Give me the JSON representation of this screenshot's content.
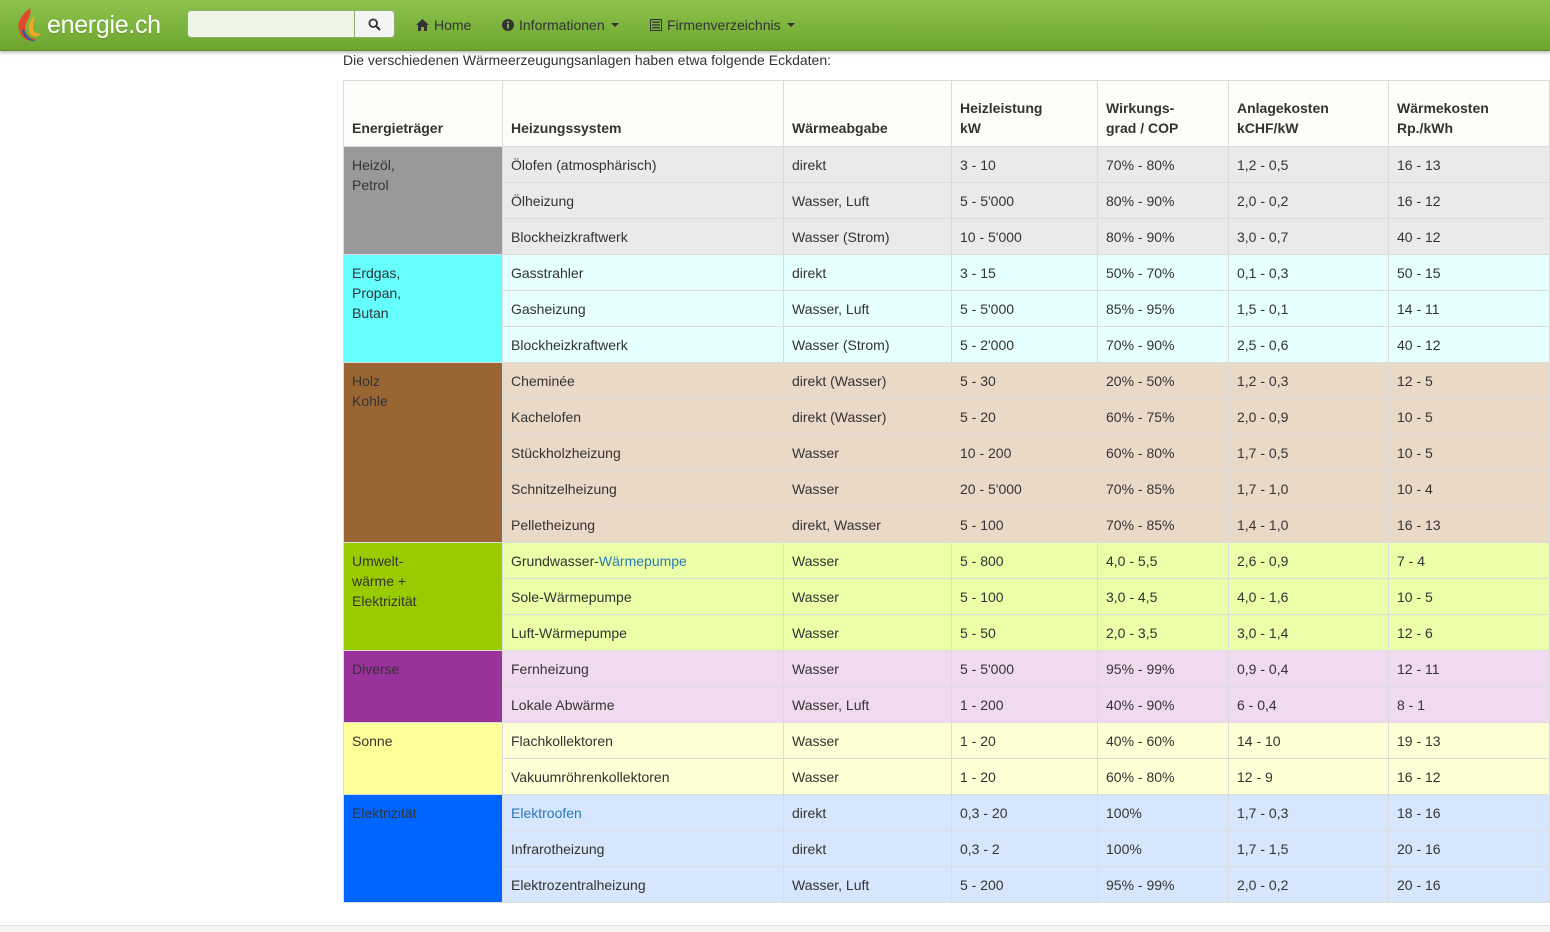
{
  "navbar": {
    "brand": "energie.ch",
    "search": {
      "value": "",
      "placeholder": ""
    },
    "items": [
      {
        "label": "Home"
      },
      {
        "label": "Informationen"
      },
      {
        "label": "Firmenverzeichnis"
      }
    ]
  },
  "intro": "Die verschiedenen Wärmeerzeugungsanlagen haben etwa folgende Eckdaten:",
  "table": {
    "headers": [
      "Energieträger",
      "Heizungssystem",
      "Wärmeabgabe",
      "Heizleistung kW",
      "Wirkungs-grad / COP",
      "Anlagekosten kCHF/kW",
      "Wärmekosten Rp./kWh"
    ],
    "groups": [
      {
        "name": "Heizöl,\nPetrol",
        "color": "#999999",
        "text_color": "#333333",
        "row_color": "#eaeaea",
        "rows": [
          [
            "Ölofen (atmosphärisch)",
            "direkt",
            "3 - 10",
            "70% - 80%",
            "1,2 - 0,5",
            "16 - 13"
          ],
          [
            "Ölheizung",
            "Wasser, Luft",
            "5 - 5'000",
            "80% - 90%",
            "2,0 - 0,2",
            "16 - 12"
          ],
          [
            "Blockheizkraftwerk",
            "Wasser (Strom)",
            "10 - 5'000",
            "80% - 90%",
            "3,0 - 0,7",
            "40 - 12"
          ]
        ]
      },
      {
        "name": "Erdgas,\nPropan,\nButan",
        "color": "#66ffff",
        "text_color": "#333333",
        "row_color": "#e6ffff",
        "rows": [
          [
            "Gasstrahler",
            "direkt",
            "3 - 15",
            "50% - 70%",
            "0,1 - 0,3",
            "50 - 15"
          ],
          [
            "Gasheizung",
            "Wasser, Luft",
            "5 - 5'000",
            "85% - 95%",
            "1,5 - 0,1",
            "14 - 11"
          ],
          [
            "Blockheizkraftwerk",
            "Wasser (Strom)",
            "5 - 2'000",
            "70% - 90%",
            "2,5 - 0,6",
            "40 - 12"
          ]
        ]
      },
      {
        "name": "Holz\nKohle",
        "color": "#996633",
        "text_color": "#333333",
        "row_color": "#ebd9c8",
        "rows": [
          [
            "Cheminée",
            "direkt (Wasser)",
            "5 - 30",
            "20% - 50%",
            "1,2 - 0,3",
            "12 - 5"
          ],
          [
            "Kachelofen",
            "direkt (Wasser)",
            "5 - 20",
            "60% - 75%",
            "2,0 - 0,9",
            "10 - 5"
          ],
          [
            "Stückholzheizung",
            "Wasser",
            "10 - 200",
            "60% - 80%",
            "1,7 - 0,5",
            "10 - 5"
          ],
          [
            "Schnitzelheizung",
            "Wasser",
            "20 - 5'000",
            "70% - 85%",
            "1,7 - 1,0",
            "10 - 4"
          ],
          [
            "Pelletheizung",
            "direkt, Wasser",
            "5 - 100",
            "70% - 85%",
            "1,4 - 1,0",
            "16 - 13"
          ]
        ]
      },
      {
        "name": "Umwelt-\nwärme +\nElektrizität",
        "color": "#99cc00",
        "text_color": "#333333",
        "row_color": "#ebffa8",
        "rows": [
          [
            "Grundwasser-|Wärmepumpe",
            "Wasser",
            "5 - 800",
            "4,0 - 5,5",
            "2,6 - 0,9",
            "7 - 4"
          ],
          [
            "Sole-Wärmepumpe",
            "Wasser",
            "5 - 100",
            "3,0 - 4,5",
            "4,0 - 1,6",
            "10 - 5"
          ],
          [
            "Luft-Wärmepumpe",
            "Wasser",
            "5 - 50",
            "2,0 - 3,5",
            "3,0 - 1,4",
            "12 - 6"
          ]
        ]
      },
      {
        "name": "Diverse",
        "color": "#993399",
        "text_color": "#333333",
        "row_color": "#f0daf0",
        "rows": [
          [
            "Fernheizung",
            "Wasser",
            "5 - 5'000",
            "95% - 99%",
            "0,9 - 0,4",
            "12 - 11"
          ],
          [
            "Lokale Abwärme",
            "Wasser, Luft",
            "1 - 200",
            "40% - 90%",
            "6 - 0,4",
            "8 - 1"
          ]
        ]
      },
      {
        "name": "Sonne",
        "color": "#ffff99",
        "text_color": "#333333",
        "row_color": "#ffffd6",
        "rows": [
          [
            "Flachkollektoren",
            "Wasser",
            "1 - 20",
            "40% - 60%",
            "14 - 10",
            "19 - 13"
          ],
          [
            "Vakuumröhrenkollektoren",
            "Wasser",
            "1 - 20",
            "60% - 80%",
            "12 - 9",
            "16 - 12"
          ]
        ]
      },
      {
        "name": "Elektrizität",
        "color": "#0066ff",
        "text_color": "#333333",
        "row_color": "#d6e6fd",
        "rows": [
          [
            "|Elektroofen",
            "direkt",
            "0,3 - 20",
            "100%",
            "1,7 - 0,3",
            "18 - 16"
          ],
          [
            "Infrarotheizung",
            "direkt",
            "0,3 - 2",
            "100%",
            "1,7 - 1,5",
            "20 - 16"
          ],
          [
            "Elektrozentralheizung",
            "Wasser, Luft",
            "5 - 200",
            "95% - 99%",
            "2,0 - 0,2",
            "20 - 16"
          ]
        ]
      }
    ]
  }
}
